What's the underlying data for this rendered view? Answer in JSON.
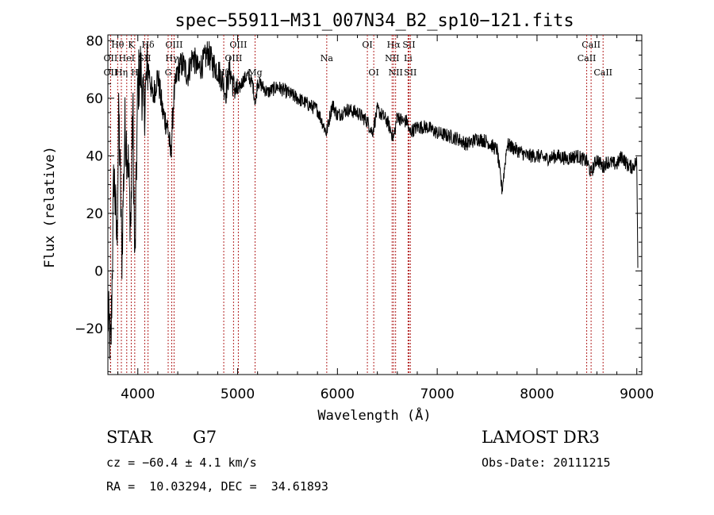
{
  "chart_data": {
    "type": "line",
    "title": "spec−55911−M31_007N34_B2_sp10−121.fits",
    "xlabel": "Wavelength (Å)",
    "ylabel": "Flux (relative)",
    "xlim": [
      3700,
      9050
    ],
    "ylim": [
      -36,
      82
    ],
    "xticks": [
      4000,
      5000,
      6000,
      7000,
      8000,
      9000
    ],
    "yticks": [
      -20,
      0,
      20,
      40,
      60,
      80
    ],
    "line_color": "#000000",
    "marker_color": "#b22222",
    "series": [
      {
        "name": "spectrum",
        "x": [
          3700,
          3730,
          3760,
          3790,
          3810,
          3840,
          3870,
          3900,
          3930,
          3950,
          3970,
          4000,
          4030,
          4060,
          4100,
          4150,
          4200,
          4250,
          4300,
          4330,
          4360,
          4400,
          4450,
          4500,
          4550,
          4600,
          4650,
          4700,
          4750,
          4800,
          4850,
          4880,
          4920,
          4960,
          5000,
          5050,
          5100,
          5150,
          5180,
          5200,
          5250,
          5300,
          5400,
          5500,
          5600,
          5700,
          5800,
          5890,
          5950,
          6000,
          6100,
          6200,
          6300,
          6350,
          6400,
          6450,
          6500,
          6563,
          6600,
          6650,
          6700,
          6720,
          6800,
          6900,
          7000,
          7100,
          7200,
          7300,
          7400,
          7500,
          7600,
          7650,
          7700,
          7800,
          7900,
          8000,
          8100,
          8200,
          8300,
          8400,
          8500,
          8540,
          8600,
          8660,
          8700,
          8800,
          8850,
          8900,
          8950,
          9000,
          9010
        ],
        "y": [
          -15,
          -28,
          35,
          10,
          55,
          5,
          50,
          40,
          15,
          58,
          0,
          65,
          70,
          55,
          72,
          60,
          68,
          55,
          50,
          40,
          60,
          70,
          72,
          68,
          75,
          70,
          72,
          76,
          72,
          70,
          66,
          62,
          70,
          64,
          62,
          66,
          68,
          65,
          58,
          66,
          64,
          62,
          64,
          62,
          60,
          58,
          56,
          48,
          58,
          54,
          56,
          55,
          52,
          48,
          56,
          54,
          52,
          46,
          54,
          52,
          52,
          48,
          50,
          50,
          48,
          47,
          46,
          44,
          46,
          45,
          42,
          28,
          44,
          42,
          40,
          40,
          39,
          40,
          39,
          40,
          38,
          34,
          39,
          36,
          38,
          37,
          40,
          37,
          36,
          38,
          2
        ]
      }
    ],
    "line_markers": [
      {
        "label": "Hθ",
        "x": 3798,
        "row": 0
      },
      {
        "label": "K",
        "x": 3934,
        "row": 0
      },
      {
        "label": "Hδ",
        "x": 4102,
        "row": 0
      },
      {
        "label": "OII",
        "x": 3727,
        "row": 1
      },
      {
        "label": "HeI",
        "x": 3889,
        "row": 1
      },
      {
        "label": "SII",
        "x": 4069,
        "row": 1
      },
      {
        "label": "OII",
        "x": 3727,
        "row": 2
      },
      {
        "label": "Hη",
        "x": 3835,
        "row": 2
      },
      {
        "label": "H",
        "x": 3969,
        "row": 2
      },
      {
        "label": "OIII",
        "x": 4363,
        "row": 0
      },
      {
        "label": "Hγ",
        "x": 4340,
        "row": 1
      },
      {
        "label": "G",
        "x": 4304,
        "row": 2
      },
      {
        "label": "OIII",
        "x": 5007,
        "row": 0
      },
      {
        "label": "OIII",
        "x": 4959,
        "row": 1
      },
      {
        "label": "Hβ",
        "x": 4861,
        "row": 2
      },
      {
        "label": "Mg",
        "x": 5175,
        "row": 2
      },
      {
        "label": "Na",
        "x": 5893,
        "row": 1
      },
      {
        "label": "OI",
        "x": 6300,
        "row": 0
      },
      {
        "label": "OI",
        "x": 6364,
        "row": 2
      },
      {
        "label": "Hα",
        "x": 6563,
        "row": 0
      },
      {
        "label": "SII",
        "x": 6717,
        "row": 0
      },
      {
        "label": "NII",
        "x": 6548,
        "row": 1
      },
      {
        "label": "Li",
        "x": 6708,
        "row": 1
      },
      {
        "label": "NII",
        "x": 6583,
        "row": 2
      },
      {
        "label": "SII",
        "x": 6731,
        "row": 2
      },
      {
        "label": "CaII",
        "x": 8542,
        "row": 0
      },
      {
        "label": "CaII",
        "x": 8498,
        "row": 1
      },
      {
        "label": "CaII",
        "x": 8662,
        "row": 2
      }
    ]
  },
  "info": {
    "object_class": "STAR",
    "subclass": "G7",
    "survey": "LAMOST DR3",
    "cz": "cz = −60.4 ± 4.1 km/s",
    "obs_date": "Obs-Date: 20111215",
    "coords": "RA =  10.03294, DEC =  34.61893"
  }
}
